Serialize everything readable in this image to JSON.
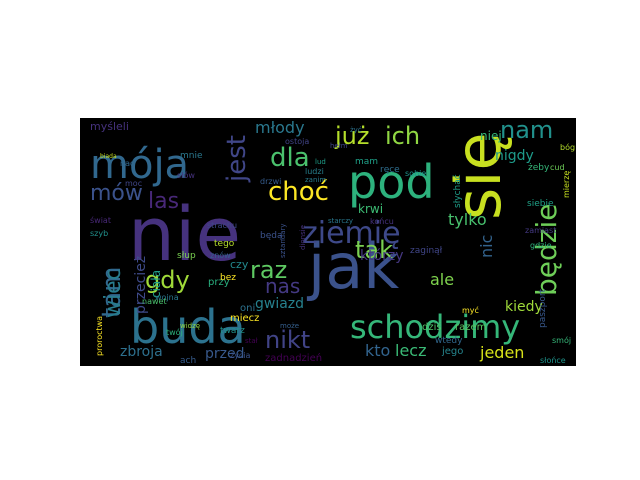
{
  "image": {
    "kind": "word-cloud",
    "background": "#000000",
    "palette": [
      "#440154",
      "#46327e",
      "#365c8d",
      "#277f8e",
      "#1fa187",
      "#4ac16d",
      "#a0da39",
      "#fde725"
    ]
  },
  "words": [
    {
      "text": "nie",
      "color": "#46327e"
    },
    {
      "text": "się",
      "color": "#c8e020"
    },
    {
      "text": "jak",
      "color": "#3b528b"
    },
    {
      "text": "pod",
      "color": "#2db27d"
    },
    {
      "text": "buda",
      "color": "#2c728e"
    },
    {
      "text": "mója",
      "color": "#31688e"
    },
    {
      "text": "schodzimy",
      "color": "#35b779"
    },
    {
      "text": "ziemię",
      "color": "#3e4989"
    },
    {
      "text": "będzie",
      "color": "#6ece58"
    },
    {
      "text": "już",
      "color": "#b5de2b"
    },
    {
      "text": "ich",
      "color": "#90d743"
    },
    {
      "text": "nam",
      "color": "#21918c"
    },
    {
      "text": "tam",
      "color": "#31688e"
    },
    {
      "text": "dla",
      "color": "#4ac16d"
    },
    {
      "text": "choć",
      "color": "#fde725"
    },
    {
      "text": "jest",
      "color": "#404688"
    },
    {
      "text": "mów",
      "color": "#3b528b"
    },
    {
      "text": "las",
      "color": "#482878"
    },
    {
      "text": "raz",
      "color": "#5ec962"
    },
    {
      "text": "gdy",
      "color": "#a0da39"
    },
    {
      "text": "nikt",
      "color": "#414487"
    },
    {
      "text": "tak",
      "color": "#7ad151"
    },
    {
      "text": "młody",
      "color": "#2a788e"
    },
    {
      "text": "wiec",
      "color": "#287c8e"
    },
    {
      "text": "nas",
      "color": "#443983"
    },
    {
      "text": "przecież",
      "color": "#3e4a89"
    },
    {
      "text": "ciała",
      "color": "#1f9e89"
    },
    {
      "text": "nic",
      "color": "#33638d"
    },
    {
      "text": "tylko",
      "color": "#48c16e"
    },
    {
      "text": "którzy",
      "color": "#453781"
    },
    {
      "text": "ale",
      "color": "#7fd34e"
    },
    {
      "text": "kiedy",
      "color": "#9fda3a"
    },
    {
      "text": "jeden",
      "color": "#d8e219"
    },
    {
      "text": "kto",
      "color": "#32648e"
    },
    {
      "text": "lecz",
      "color": "#3aba76"
    },
    {
      "text": "zbroja",
      "color": "#2d708e"
    },
    {
      "text": "przed",
      "color": "#38598c"
    },
    {
      "text": "gwiazd",
      "color": "#26818e"
    },
    {
      "text": "nigdy",
      "color": "#1e9b8a"
    },
    {
      "text": "niej",
      "color": "#35b779"
    },
    {
      "text": "krwi",
      "color": "#3dbc74"
    },
    {
      "text": "dziś",
      "color": "#50c46a"
    },
    {
      "text": "razem",
      "color": "#5cc863"
    },
    {
      "text": "jego",
      "color": "#25858e"
    },
    {
      "text": "zadnadzień",
      "color": "#440154"
    },
    {
      "text": "słońce",
      "color": "#1f948c"
    },
    {
      "text": "paszport",
      "color": "#38588c"
    },
    {
      "text": "myśleli",
      "color": "#46327e"
    },
    {
      "text": "mnie",
      "color": "#2a788e"
    },
    {
      "text": "ręce",
      "color": "#2e6e8e"
    },
    {
      "text": "mam",
      "color": "#1fa188"
    },
    {
      "text": "żeby",
      "color": "#35b779"
    },
    {
      "text": "będą",
      "color": "#3b528b"
    },
    {
      "text": "czy",
      "color": "#23898e"
    },
    {
      "text": "przy",
      "color": "#29af7f"
    },
    {
      "text": "oni",
      "color": "#2c728e"
    },
    {
      "text": "twarz",
      "color": "#21918c"
    },
    {
      "text": "miecz",
      "color": "#fde725"
    },
    {
      "text": "bez",
      "color": "#fde725"
    },
    {
      "text": "ach",
      "color": "#365c8d"
    },
    {
      "text": "słup",
      "color": "#7ad151"
    },
    {
      "text": "tego",
      "color": "#b5de2b"
    },
    {
      "text": "słychać",
      "color": "#1f9e89"
    },
    {
      "text": "zaginął",
      "color": "#404688"
    },
    {
      "text": "proroctwa",
      "color": "#fde725"
    },
    {
      "text": "wtedy",
      "color": "#31688e"
    },
    {
      "text": "życia",
      "color": "#3b528b"
    },
    {
      "text": "słów",
      "color": "#46327e"
    },
    {
      "text": "wojna",
      "color": "#2a788e"
    },
    {
      "text": "świat",
      "color": "#482878"
    },
    {
      "text": "ostoja",
      "color": "#414487"
    },
    {
      "text": "sobie",
      "color": "#1f948c"
    },
    {
      "text": "znów",
      "color": "#355f8d"
    },
    {
      "text": "nawet",
      "color": "#4ac16d"
    },
    {
      "text": "twój",
      "color": "#2db27d"
    },
    {
      "text": "drzwi",
      "color": "#365c8d"
    },
    {
      "text": "siebie",
      "color": "#1fa187"
    },
    {
      "text": "końcu",
      "color": "#46327e"
    },
    {
      "text": "strachu",
      "color": "#3e4989"
    },
    {
      "text": "cud",
      "color": "#6ece58"
    },
    {
      "text": "bóg",
      "color": "#b5de2b"
    },
    {
      "text": "ludzi",
      "color": "#27808e"
    },
    {
      "text": "mierzę",
      "color": "#c8e020"
    },
    {
      "text": "zamiast",
      "color": "#443983"
    },
    {
      "text": "gdzie",
      "color": "#2db27d"
    },
    {
      "text": "smój",
      "color": "#35b779"
    },
    {
      "text": "moc",
      "color": "#404688"
    },
    {
      "text": "nad",
      "color": "#31688e"
    },
    {
      "text": "szyb",
      "color": "#21918c"
    },
    {
      "text": "myć",
      "color": "#fde725"
    },
    {
      "text": "żyć",
      "color": "#2c728e"
    },
    {
      "text": "lud",
      "color": "#1f9e89"
    },
    {
      "text": "dionsie",
      "color": "#46327e"
    },
    {
      "text": "sztandary",
      "color": "#3b528b"
    },
    {
      "text": "widzę",
      "color": "#90d743"
    },
    {
      "text": "stał",
      "color": "#440154"
    },
    {
      "text": "może",
      "color": "#355f8d"
    },
    {
      "text": "zanim",
      "color": "#287c8e"
    },
    {
      "text": "hełm",
      "color": "#404688"
    },
    {
      "text": "biada",
      "color": "#c8e020"
    },
    {
      "text": "starczy",
      "color": "#2a788e"
    }
  ]
}
